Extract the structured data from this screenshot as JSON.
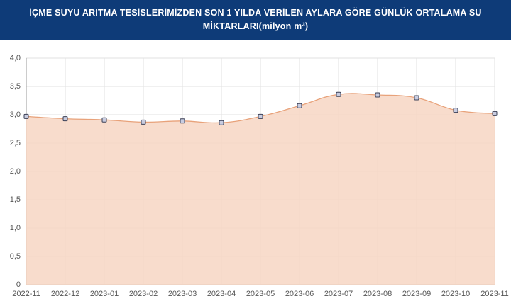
{
  "chart_data": {
    "type": "area",
    "title": "İÇME SUYU ARITMA TESİSLERİMİZDEN SON 1 YILDA VERİLEN AYLARA GÖRE GÜNLÜK ORTALAMA SU MİKTARLARI(milyon m³)",
    "categories": [
      "2022-11",
      "2022-12",
      "2023-01",
      "2023-02",
      "2023-03",
      "2023-04",
      "2023-05",
      "2023-06",
      "2023-07",
      "2023-08",
      "2023-09",
      "2023-10",
      "2023-11"
    ],
    "values": [
      2.97,
      2.93,
      2.91,
      2.87,
      2.89,
      2.86,
      2.97,
      3.16,
      3.36,
      3.35,
      3.3,
      3.08,
      3.02
    ],
    "color": "#e8a27a",
    "fill": "#f7d6c3",
    "marker_color": "#c8cce0",
    "ylim": [
      0,
      4
    ],
    "yticks": [
      0,
      {
        "value": 0.5,
        "label": "0,5"
      },
      {
        "value": 1,
        "label": "1,0"
      },
      {
        "value": 1.5,
        "label": "1,5"
      },
      {
        "value": 2,
        "label": "2,0"
      },
      {
        "value": 2.5,
        "label": "2,5"
      },
      {
        "value": 3,
        "label": "3,0"
      },
      {
        "value": 3.5,
        "label": "3,5"
      },
      {
        "value": 4,
        "label": "4,0"
      }
    ],
    "grid": true
  }
}
